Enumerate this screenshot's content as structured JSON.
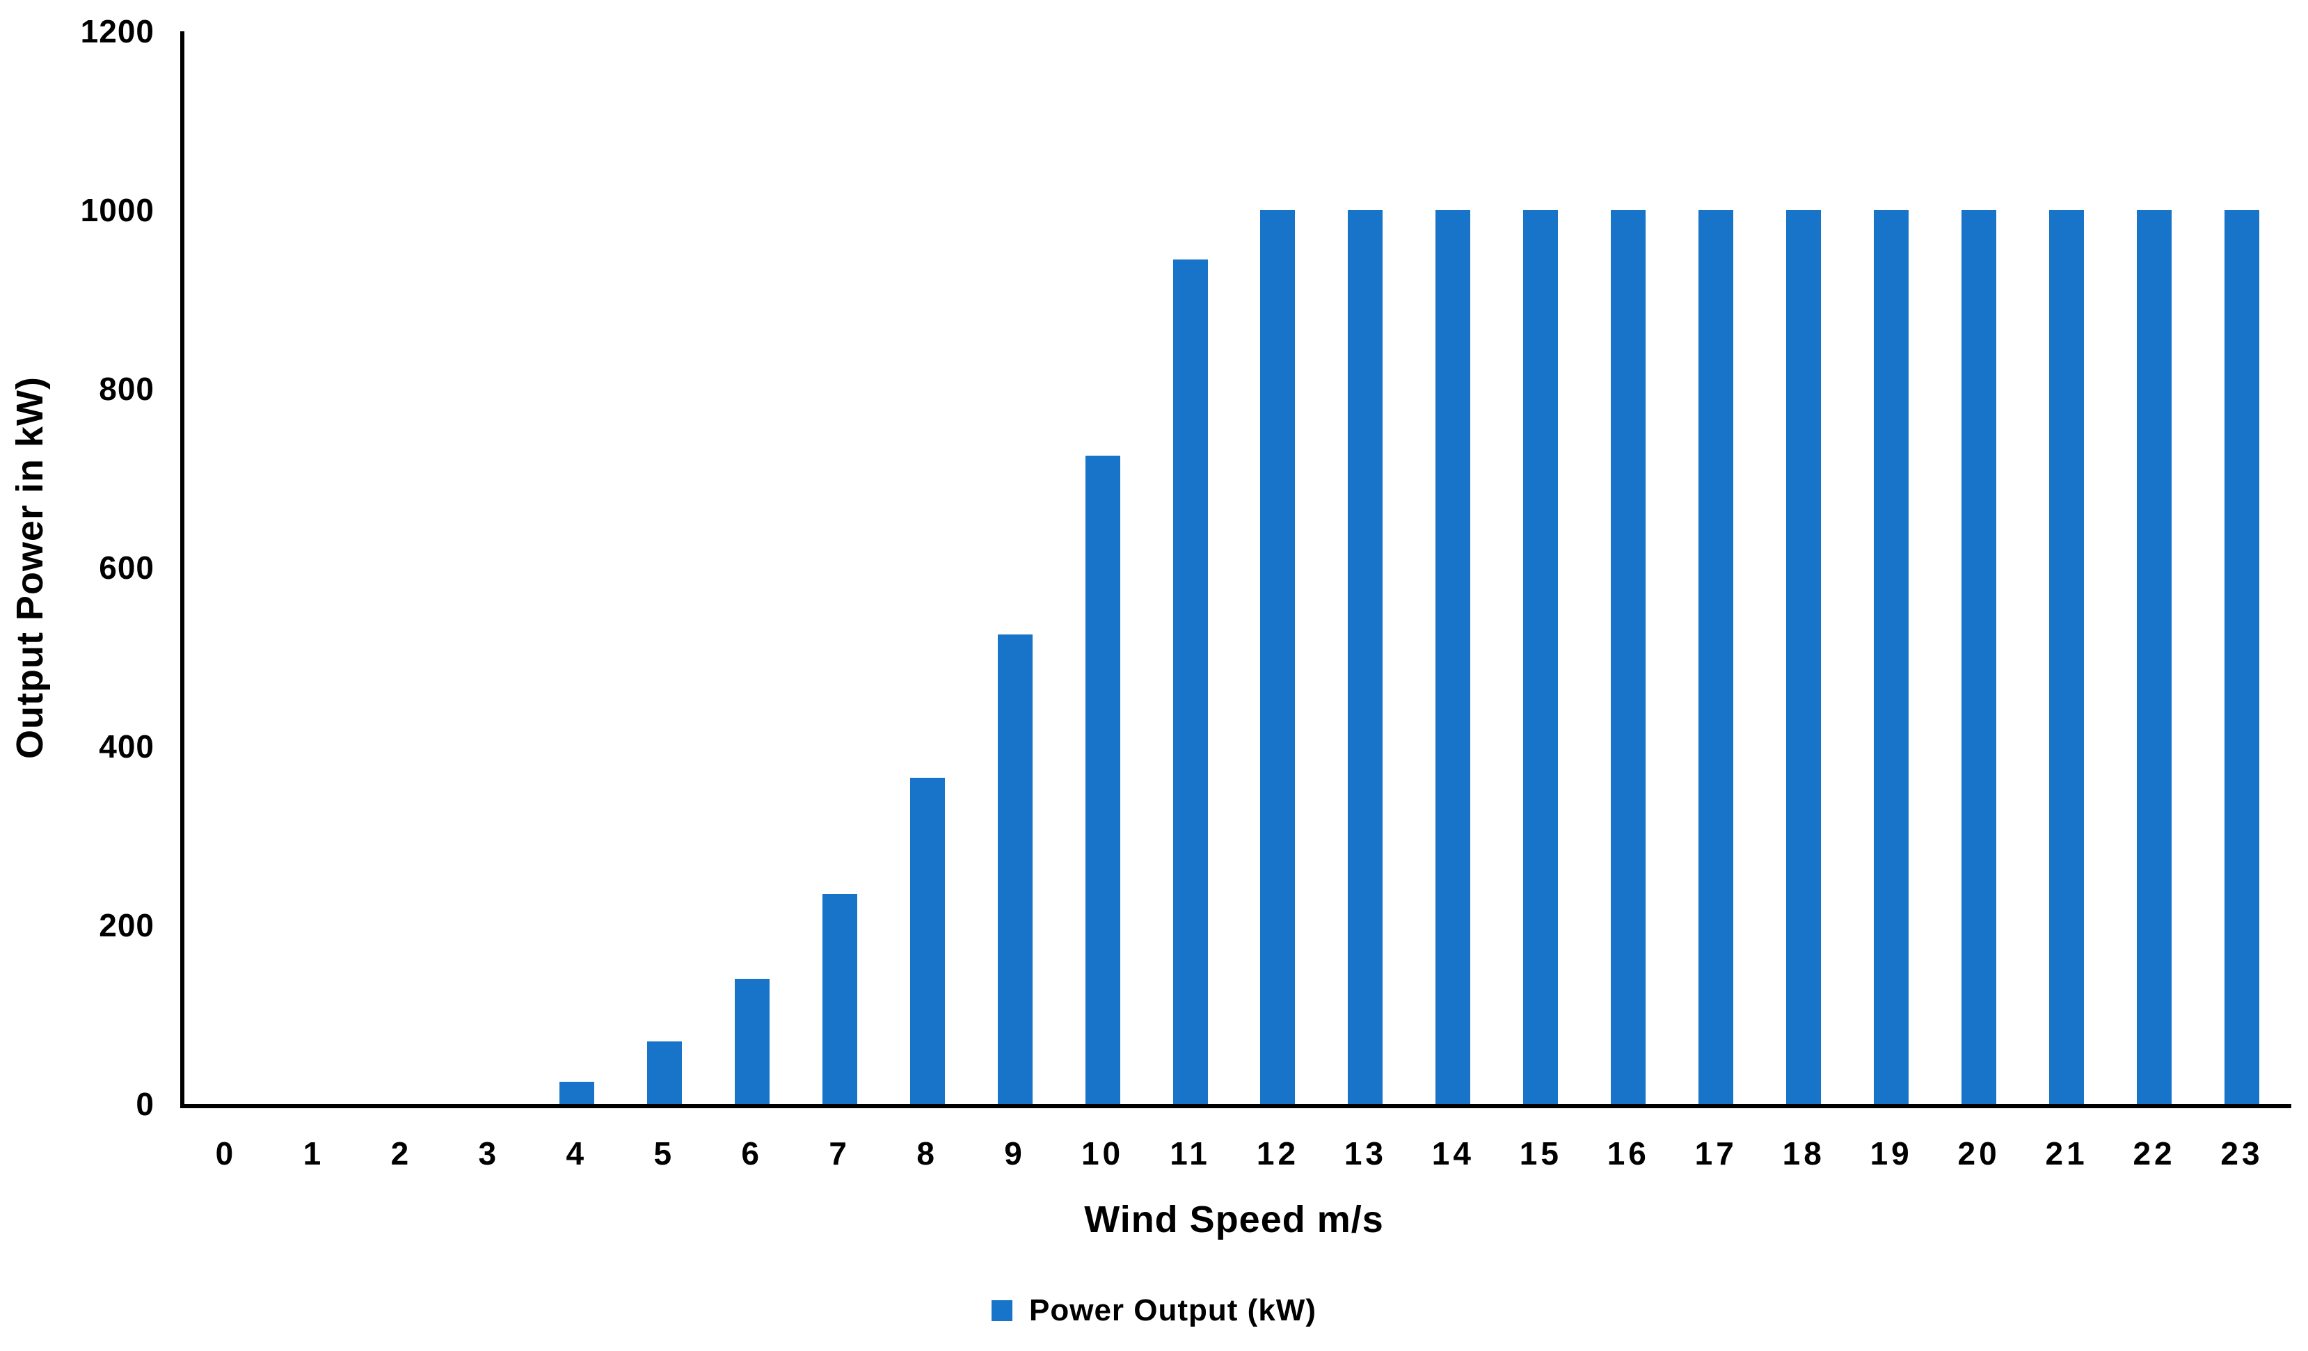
{
  "chart_data": {
    "type": "bar",
    "title": "",
    "xlabel": "Wind Speed m/s",
    "ylabel": "Output Power in kW)",
    "categories": [
      "0",
      "1",
      "2",
      "3",
      "4",
      "5",
      "6",
      "7",
      "8",
      "9",
      "10",
      "11",
      "12",
      "13",
      "14",
      "15",
      "16",
      "17",
      "18",
      "19",
      "20",
      "21",
      "22",
      "23"
    ],
    "values": [
      0,
      0,
      0,
      0,
      25,
      70,
      140,
      235,
      365,
      525,
      725,
      945,
      1000,
      1000,
      1000,
      1000,
      1000,
      1000,
      1000,
      1000,
      1000,
      1000,
      1000,
      1000
    ],
    "series_name": "Power Output (kW)",
    "ylim": [
      0,
      1200
    ],
    "yticks": [
      0,
      200,
      400,
      600,
      800,
      1000,
      1200
    ],
    "grid": false,
    "legend_position": "bottom",
    "bar_color": "#1874C8",
    "axis_color": "#000000",
    "text_color": "#000000"
  },
  "legend": {
    "label": "Power Output (kW)",
    "swatch_color": "#1874C8"
  }
}
